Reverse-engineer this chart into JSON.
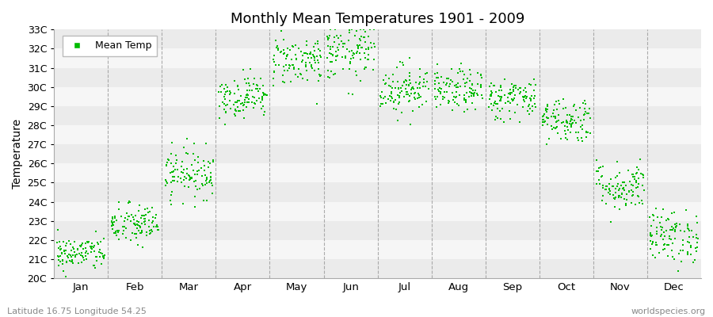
{
  "title": "Monthly Mean Temperatures 1901 - 2009",
  "ylabel": "Temperature",
  "xlabel_bottom_left": "Latitude 16.75 Longitude 54.25",
  "xlabel_bottom_right": "worldspecies.org",
  "legend_label": "Mean Temp",
  "dot_color": "#00BB00",
  "background_color": "#EFEFEF",
  "ylim": [
    20,
    33
  ],
  "yticks": [
    20,
    21,
    22,
    23,
    24,
    25,
    26,
    27,
    28,
    29,
    30,
    31,
    32,
    33
  ],
  "ytick_labels": [
    "20C",
    "21C",
    "22C",
    "23C",
    "24C",
    "25C",
    "26C",
    "27C",
    "28C",
    "29C",
    "30C",
    "31C",
    "32C",
    "33C"
  ],
  "months": [
    "Jan",
    "Feb",
    "Mar",
    "Apr",
    "May",
    "Jun",
    "Jul",
    "Aug",
    "Sep",
    "Oct",
    "Nov",
    "Dec"
  ],
  "mean_temps": [
    21.3,
    22.8,
    25.5,
    29.5,
    31.4,
    31.8,
    29.9,
    29.8,
    29.4,
    28.3,
    24.8,
    22.2
  ],
  "std_temps": [
    0.45,
    0.55,
    0.65,
    0.55,
    0.65,
    0.75,
    0.65,
    0.55,
    0.55,
    0.6,
    0.65,
    0.7
  ],
  "n_years": 109,
  "dot_size": 2.5,
  "fig_width": 9.0,
  "fig_height": 4.0,
  "dpi": 100,
  "band_colors": [
    "#EBEBEB",
    "#F6F6F6"
  ]
}
